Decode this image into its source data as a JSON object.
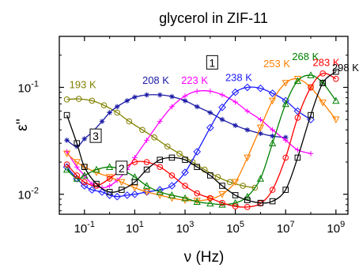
{
  "chart_data": {
    "type": "scatter",
    "title": "glycerol in ZIF-11",
    "xlabel": "ν (Hz)",
    "ylabel": "ε''",
    "x_scale": "log",
    "y_scale": "log",
    "xlim": [
      0.01,
      3000000000.0
    ],
    "ylim": [
      0.0065,
      0.3
    ],
    "x_ticks": [
      {
        "value": 0.1,
        "label": "10-1",
        "base": "10",
        "exp": "-1"
      },
      {
        "value": 10,
        "label": "101",
        "base": "10",
        "exp": "1"
      },
      {
        "value": 1000,
        "label": "103",
        "base": "10",
        "exp": "3"
      },
      {
        "value": 100000,
        "label": "105",
        "base": "10",
        "exp": "5"
      },
      {
        "value": 10000000,
        "label": "107",
        "base": "10",
        "exp": "7"
      },
      {
        "value": 1000000000,
        "label": "109",
        "base": "10",
        "exp": "9"
      }
    ],
    "y_ticks": [
      {
        "value": 0.01,
        "label": "10-2",
        "base": "10",
        "exp": "-2"
      },
      {
        "value": 0.1,
        "label": "10-1",
        "base": "10",
        "exp": "-1"
      }
    ],
    "annotations": [
      {
        "text": "1",
        "x": 12000.0,
        "y": 0.17,
        "boxed": true
      },
      {
        "text": "2",
        "x": 3.0,
        "y": 0.0175,
        "boxed": true
      },
      {
        "text": "3",
        "x": 0.28,
        "y": 0.035,
        "boxed": true
      }
    ],
    "series": [
      {
        "name": "193 K",
        "color": "#808000",
        "marker": "circle",
        "label_x": 0.025,
        "label_y": 0.098,
        "x": [
          0.02,
          0.06,
          0.2,
          0.6,
          2,
          6,
          20,
          60,
          200,
          600,
          2000,
          6000,
          20000,
          60000,
          200000,
          600000
        ],
        "y": [
          0.077,
          0.078,
          0.075,
          0.068,
          0.058,
          0.048,
          0.04,
          0.034,
          0.028,
          0.024,
          0.02,
          0.017,
          0.0145,
          0.013,
          0.012,
          0.0115
        ]
      },
      {
        "name": "208 K",
        "color": "#1a1aa6",
        "marker": "star",
        "label_x": 20,
        "label_y": 0.108,
        "x": [
          0.02,
          0.05,
          0.1,
          0.2,
          0.5,
          1,
          2,
          5,
          10,
          30,
          100,
          300,
          1000,
          3000,
          10000,
          30000,
          100000,
          300000,
          1000000,
          3000000,
          10000000
        ],
        "y": [
          0.032,
          0.028,
          0.033,
          0.038,
          0.048,
          0.058,
          0.066,
          0.075,
          0.081,
          0.085,
          0.085,
          0.082,
          0.075,
          0.066,
          0.058,
          0.05,
          0.044,
          0.04,
          0.037,
          0.035,
          0.034
        ]
      },
      {
        "name": "223 K",
        "color": "#ff00ff",
        "marker": "plus",
        "label_x": 700,
        "label_y": 0.108,
        "x": [
          0.02,
          0.05,
          0.1,
          0.2,
          0.5,
          1,
          2,
          5,
          10,
          30,
          100,
          300,
          1000,
          3000,
          10000,
          30000,
          100000,
          300000,
          1000000,
          3000000,
          10000000,
          30000000,
          100000000
        ],
        "y": [
          0.025,
          0.018,
          0.015,
          0.0125,
          0.0115,
          0.012,
          0.0135,
          0.017,
          0.022,
          0.032,
          0.048,
          0.066,
          0.083,
          0.092,
          0.092,
          0.085,
          0.073,
          0.06,
          0.05,
          0.04,
          0.032,
          0.026,
          0.024
        ]
      },
      {
        "name": "238 K",
        "color": "#1a1aff",
        "marker": "diamond",
        "label_x": 40000.0,
        "label_y": 0.115,
        "x": [
          0.02,
          0.05,
          0.1,
          0.2,
          0.5,
          1,
          2,
          5,
          10,
          30,
          100,
          300,
          1000,
          3000,
          10000,
          30000,
          100000,
          300000,
          1000000,
          3000000,
          10000000,
          30000000,
          100000000
        ],
        "y": [
          0.018,
          0.014,
          0.012,
          0.011,
          0.0105,
          0.0098,
          0.0095,
          0.0098,
          0.01,
          0.0105,
          0.011,
          0.012,
          0.016,
          0.025,
          0.042,
          0.065,
          0.09,
          0.1,
          0.098,
          0.088,
          0.075,
          0.06,
          0.05
        ]
      },
      {
        "name": "253 K",
        "color": "#ff8000",
        "marker": "triangle-down",
        "label_x": 1300000.0,
        "label_y": 0.155,
        "x": [
          0.02,
          0.05,
          0.1,
          0.3,
          1,
          3,
          10,
          30,
          100,
          300,
          1000,
          3000,
          10000,
          30000,
          100000,
          300000,
          1000000,
          3000000,
          10000000,
          30000000,
          100000000,
          300000000,
          1000000000
        ],
        "y": [
          0.024,
          0.02,
          0.018,
          0.016,
          0.0145,
          0.013,
          0.0115,
          0.0105,
          0.0098,
          0.0092,
          0.0088,
          0.0087,
          0.009,
          0.01,
          0.013,
          0.022,
          0.042,
          0.075,
          0.11,
          0.12,
          0.1,
          0.072,
          0.05
        ]
      },
      {
        "name": "268 K",
        "color": "#008000",
        "marker": "triangle-up",
        "label_x": 18000000.0,
        "label_y": 0.18,
        "x": [
          0.02,
          0.05,
          0.1,
          0.3,
          1,
          3,
          10,
          30,
          100,
          300,
          1000,
          3000,
          10000,
          30000,
          100000,
          300000,
          1000000,
          3000000,
          10000000,
          30000000,
          100000000,
          300000000,
          1000000000
        ],
        "y": [
          0.017,
          0.014,
          0.015,
          0.017,
          0.018,
          0.017,
          0.0145,
          0.012,
          0.0105,
          0.0098,
          0.0092,
          0.0085,
          0.0082,
          0.008,
          0.0083,
          0.0095,
          0.014,
          0.03,
          0.07,
          0.115,
          0.13,
          0.11,
          0.075
        ]
      },
      {
        "name": "283 K",
        "color": "#ff0000",
        "marker": "circle",
        "label_x": 120000000.0,
        "label_y": 0.158,
        "x": [
          0.02,
          0.05,
          0.1,
          0.3,
          1,
          3,
          10,
          30,
          100,
          300,
          1000,
          3000,
          10000,
          30000,
          100000,
          300000,
          1000000,
          3000000,
          10000000,
          30000000,
          100000000,
          300000000,
          1000000000
        ],
        "y": [
          0.019,
          0.015,
          0.013,
          0.012,
          0.014,
          0.017,
          0.02,
          0.02,
          0.018,
          0.015,
          0.012,
          0.0102,
          0.0092,
          0.0083,
          0.0077,
          0.0076,
          0.0082,
          0.011,
          0.022,
          0.052,
          0.1,
          0.135,
          0.12
        ]
      },
      {
        "name": "298 K",
        "color": "#000000",
        "marker": "square",
        "label_x": 700000000.0,
        "label_y": 0.142,
        "x": [
          0.02,
          0.05,
          0.1,
          0.3,
          1,
          3,
          10,
          30,
          100,
          300,
          1000,
          3000,
          10000,
          30000,
          100000,
          300000,
          1000000,
          3000000,
          10000000,
          30000000,
          100000000,
          300000000,
          1000000000
        ],
        "y": [
          0.055,
          0.03,
          0.018,
          0.0125,
          0.0105,
          0.011,
          0.013,
          0.017,
          0.021,
          0.022,
          0.021,
          0.018,
          0.015,
          0.012,
          0.0098,
          0.0088,
          0.0083,
          0.0086,
          0.011,
          0.022,
          0.055,
          0.11,
          0.14
        ]
      }
    ]
  }
}
